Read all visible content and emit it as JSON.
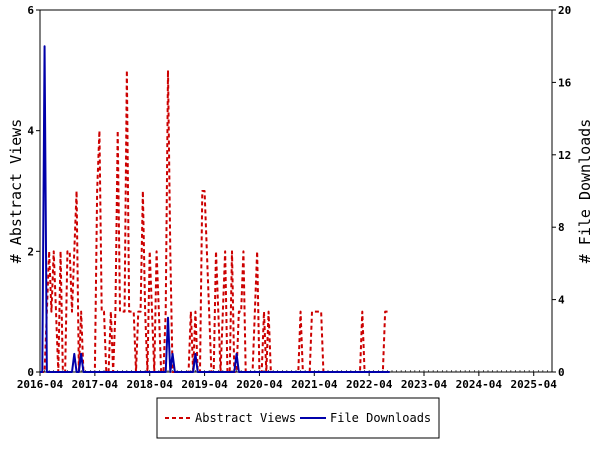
{
  "chart_data": {
    "type": "line",
    "title": "",
    "x_tick_labels": [
      "2016-04",
      "2017-04",
      "2018-04",
      "2019-04",
      "2020-04",
      "2021-04",
      "2022-04",
      "2023-04",
      "2024-04",
      "2025-04"
    ],
    "x_range_months": [
      "2016-04",
      "2025-08"
    ],
    "y_left": {
      "label": "# Abstract Views",
      "range": [
        0,
        6
      ],
      "ticks": [
        "0",
        "2",
        "4",
        "6"
      ]
    },
    "y_right": {
      "label": "# File Downloads",
      "range": [
        0,
        20
      ],
      "ticks": [
        "0",
        "4",
        "8",
        "12",
        "16",
        "20"
      ]
    },
    "legend_position": "bottom-center",
    "series": [
      {
        "name": "Abstract Views",
        "axis": "left",
        "color": "#cc0000",
        "style": "dashed",
        "start_month": "2016-04",
        "values": [
          0,
          0,
          0,
          1,
          2,
          1,
          2,
          1,
          0,
          2,
          0,
          0,
          2,
          2,
          1,
          2,
          3,
          0,
          1,
          0,
          0,
          0,
          0,
          0,
          0,
          3,
          4,
          1,
          1,
          0,
          0,
          1,
          0,
          1,
          4,
          1,
          1,
          1,
          5,
          1,
          1,
          1,
          0,
          1,
          1,
          3,
          1,
          0,
          2,
          1,
          0,
          2,
          1,
          0,
          0,
          1,
          5,
          2,
          0,
          0,
          0,
          0,
          0,
          0,
          0,
          0,
          1,
          0,
          1,
          0,
          0,
          3,
          3,
          2,
          1,
          0,
          0,
          2,
          1,
          0,
          1,
          2,
          0,
          0,
          2,
          0,
          0,
          1,
          1,
          2,
          0,
          0,
          0,
          0,
          1,
          2,
          0,
          0,
          1,
          0,
          1,
          0,
          0,
          0,
          0,
          0,
          0,
          0,
          0,
          0,
          0,
          0,
          0,
          0,
          1,
          0,
          0,
          0,
          0,
          1,
          1,
          1,
          1,
          1,
          0,
          0,
          0,
          0,
          0,
          0,
          0,
          0,
          0,
          0,
          0,
          0,
          0,
          0,
          0,
          0,
          0,
          1,
          0,
          0,
          0,
          0,
          0,
          0,
          0,
          0,
          0,
          1,
          1,
          1
        ]
      },
      {
        "name": "File Downloads",
        "axis": "right",
        "color": "#0000aa",
        "style": "solid",
        "start_month": "2016-04",
        "values": [
          0,
          0,
          18,
          0,
          0,
          0,
          0,
          0,
          0,
          0,
          0,
          0,
          0,
          0,
          0,
          1,
          0,
          0,
          1,
          0,
          0,
          0,
          0,
          0,
          0,
          0,
          0,
          0,
          0,
          0,
          0,
          0,
          0,
          0,
          0,
          0,
          0,
          0,
          0,
          0,
          0,
          0,
          0,
          0,
          0,
          0,
          0,
          0,
          0,
          0,
          0,
          0,
          0,
          0,
          0,
          0,
          3,
          0,
          1,
          0,
          0,
          0,
          0,
          0,
          0,
          0,
          0,
          0,
          1,
          0,
          0,
          0,
          0,
          0,
          0,
          0,
          0,
          0,
          0,
          0,
          0,
          0,
          0,
          0,
          0,
          0,
          1,
          0,
          0,
          0,
          0,
          0,
          0,
          0,
          0,
          0,
          0,
          0,
          0,
          0,
          0,
          0,
          0,
          0,
          0,
          0,
          0,
          0,
          0,
          0,
          0,
          0,
          0,
          0,
          0,
          0,
          0,
          0,
          0,
          0,
          0,
          0,
          0,
          0,
          0,
          0,
          0,
          0,
          0,
          0,
          0,
          0,
          0,
          0,
          0,
          0,
          0,
          0,
          0,
          0,
          0,
          0,
          0,
          0,
          0,
          0,
          0,
          0,
          0,
          0,
          0,
          0,
          0,
          0
        ]
      }
    ]
  }
}
